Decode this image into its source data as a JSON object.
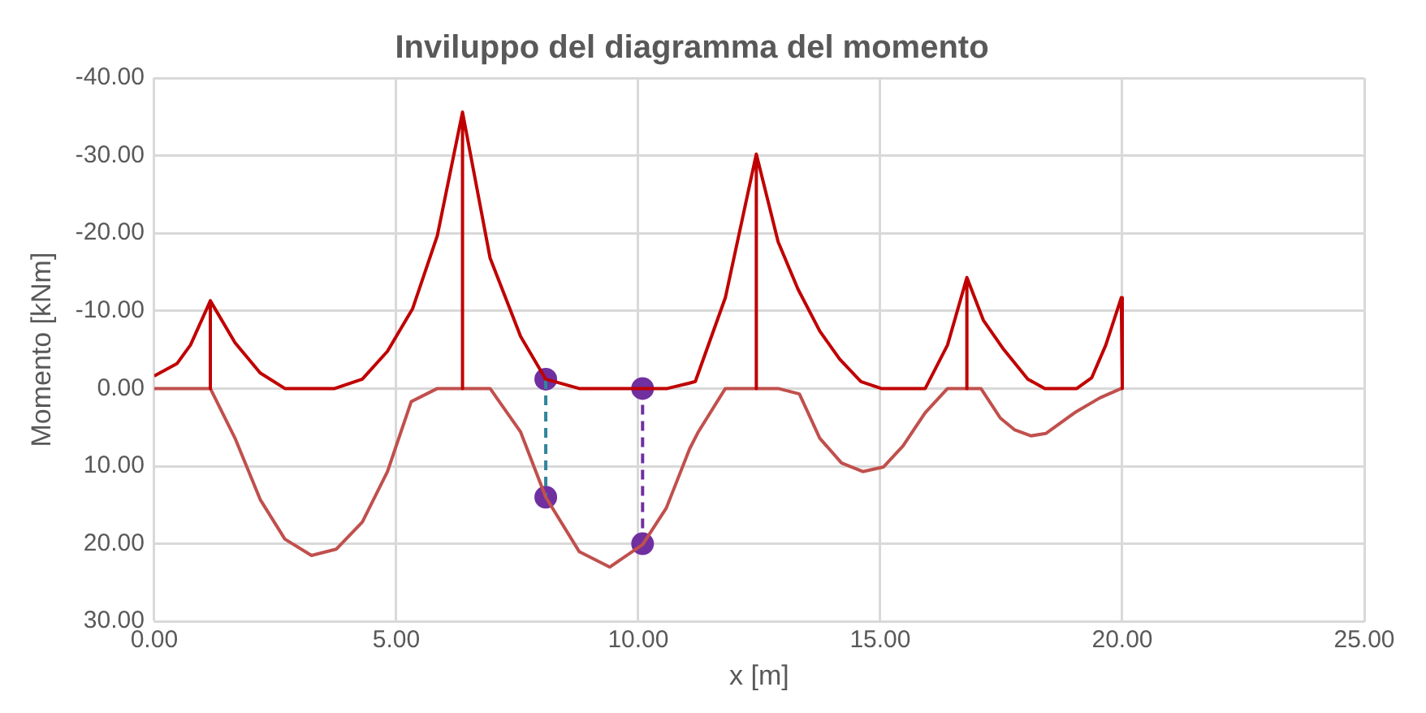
{
  "chart_data": {
    "type": "line",
    "title": "Inviluppo del diagramma del momento",
    "xlabel": "x [m]",
    "ylabel": "Momento [kNm]",
    "xlim": [
      0,
      25
    ],
    "xticks": [
      {
        "value": 0,
        "label": "0.00"
      },
      {
        "value": 5,
        "label": "5.00"
      },
      {
        "value": 10,
        "label": "10.00"
      },
      {
        "value": 15,
        "label": "15.00"
      },
      {
        "value": 20,
        "label": "20.00"
      },
      {
        "value": 25,
        "label": "25.00"
      }
    ],
    "ylim": [
      30,
      -40
    ],
    "yticks": [
      {
        "value": -40,
        "label": "-40.00"
      },
      {
        "value": -30,
        "label": "-30.00"
      },
      {
        "value": -20,
        "label": "-20.00"
      },
      {
        "value": -10,
        "label": "-10.00"
      },
      {
        "value": 0,
        "label": "0.00"
      },
      {
        "value": 10,
        "label": "10.00"
      },
      {
        "value": 20,
        "label": "20.00"
      },
      {
        "value": 30,
        "label": "30.00"
      }
    ],
    "grid": true,
    "legend": false,
    "marker": "none",
    "line_style": "solid",
    "series": [
      {
        "type": "line",
        "color": "#c00000",
        "x": [
          0,
          0.47,
          0.75,
          1.16,
          1.16,
          1.16,
          1.67,
          2.19,
          2.7,
          3.73,
          4.3,
          4.82,
          5.34,
          5.85,
          6.37,
          6.37,
          6.37,
          6.94,
          7.57,
          8.09,
          8.78,
          10.6,
          11.06,
          11.18,
          11.8,
          12.44,
          12.44,
          12.44,
          12.89,
          13.3,
          13.75,
          14.16,
          14.6,
          15.02,
          15.93,
          16.39,
          16.79,
          16.79,
          16.79,
          17.13,
          17.53,
          18.05,
          18.4,
          19.06,
          19.37,
          19.66,
          19.98,
          20
        ],
        "values": [
          -1.6,
          -3.2,
          -5.6,
          -11.3,
          0,
          -11.3,
          -5.9,
          -2,
          0,
          0,
          -1.2,
          -4.8,
          -10.3,
          -19.7,
          -35.6,
          0,
          -35.6,
          -16.8,
          -6.7,
          -1.2,
          0,
          0,
          -0.7,
          -0.9,
          -11.7,
          -30.2,
          0,
          -30.2,
          -18.9,
          -12.8,
          -7.4,
          -3.8,
          -0.9,
          0,
          0,
          -5.6,
          -14.3,
          0,
          -14.3,
          -8.8,
          -5.2,
          -1.2,
          0,
          0,
          -1.4,
          -5.6,
          -11.7,
          0
        ]
      },
      {
        "type": "line",
        "color": "#c0504d",
        "x": [
          0,
          1.16,
          1.67,
          2.19,
          2.7,
          3.25,
          3.76,
          4.3,
          4.82,
          5.31,
          5.85,
          6.94,
          7.57,
          8.09,
          8.78,
          9.41,
          10.09,
          10.58,
          11.06,
          11.24,
          11.8,
          12.89,
          13.33,
          13.75,
          14.2,
          14.64,
          15.07,
          15.47,
          15.93,
          16.39,
          17.08,
          17.48,
          17.77,
          18.11,
          18.42,
          19.02,
          19.54,
          19.98
        ],
        "values": [
          0,
          0,
          6.4,
          14.3,
          19.4,
          21.5,
          20.7,
          17.2,
          10.7,
          1.7,
          0,
          0,
          5.6,
          14,
          21,
          23,
          20.1,
          15.4,
          7.8,
          5.6,
          0,
          0,
          0.7,
          6.4,
          9.6,
          10.7,
          10.1,
          7.4,
          3.1,
          0,
          0,
          3.8,
          5.3,
          6.1,
          5.8,
          3.1,
          1.2,
          0
        ]
      },
      {
        "type": "line",
        "color": "#31859c",
        "line_style": "dashed",
        "x": [
          8.09,
          8.09
        ],
        "values": [
          -1.2,
          14
        ]
      },
      {
        "type": "line",
        "color": "#7030a0",
        "line_style": "dashed",
        "x": [
          10.09,
          10.09
        ],
        "values": [
          0,
          20
        ]
      },
      {
        "type": "scatter",
        "color": "#7030a0",
        "marker": "circle",
        "x": [
          8.09,
          8.09,
          10.09,
          10.09
        ],
        "values": [
          -1.2,
          14,
          0,
          20
        ]
      }
    ]
  }
}
